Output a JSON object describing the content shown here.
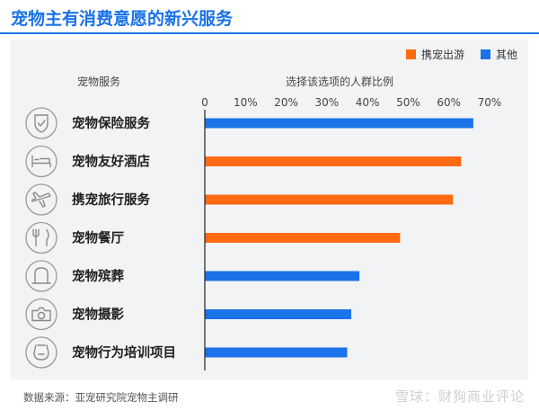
{
  "title": "宠物主有消费意愿的新兴服务",
  "source": "数据来源：亚宠研究院宠物主调研",
  "credit": "雪球：财狗商业评论",
  "colors": {
    "blue": "#1a73e8",
    "orange": "#ff6a13"
  },
  "chart_data": {
    "type": "bar",
    "orientation": "horizontal",
    "category_header": "宠物服务",
    "axis_header": "选择该选项的人群比例",
    "categories": [
      "宠物保险服务",
      "宠物友好酒店",
      "携宠旅行服务",
      "宠物餐厅",
      "宠物殡葬",
      "宠物摄影",
      "宠物行为培训项目"
    ],
    "icons": [
      "shield-check-icon",
      "bed-icon",
      "airplane-icon",
      "fork-knife-icon",
      "memorial-icon",
      "camera-icon",
      "training-icon"
    ],
    "values": [
      66,
      63,
      61,
      48,
      38,
      36,
      35
    ],
    "groups": [
      "其他",
      "携宠出游",
      "携宠出游",
      "携宠出游",
      "其他",
      "其他",
      "其他"
    ],
    "legend": [
      {
        "name": "携宠出游",
        "color": "#ff6a13"
      },
      {
        "name": "其他",
        "color": "#1a73e8"
      }
    ],
    "xlim": [
      0,
      70
    ],
    "ticks": [
      "0",
      "10%",
      "20%",
      "30%",
      "40%",
      "50%",
      "60%",
      "70%"
    ],
    "legend_position": "top-right",
    "grid": false
  }
}
